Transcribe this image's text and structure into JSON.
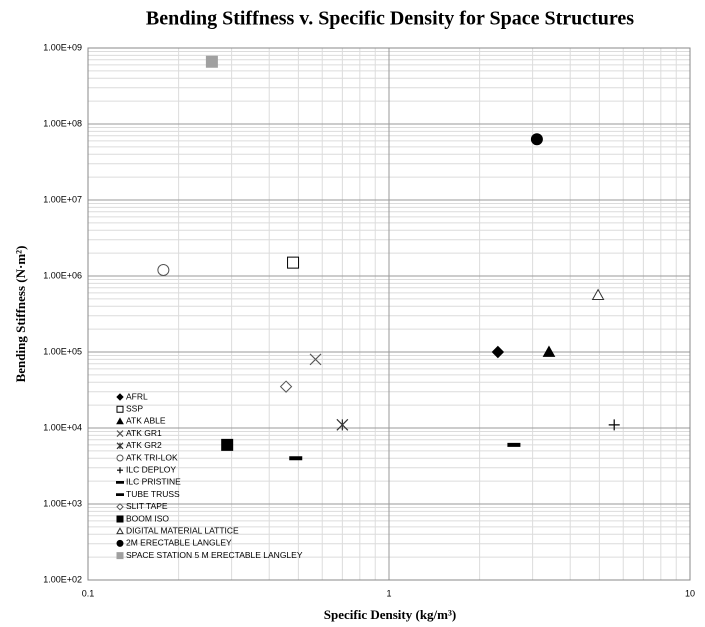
{
  "chart_data": {
    "type": "scatter",
    "title": "Bending Stiffness v. Specific Density for Space Structures",
    "x_label": "Specific Density (kg/m³)",
    "y_label": "Bending Stiffness (N·m²)",
    "log_x": true,
    "log_y": true,
    "grid": true,
    "minor_grid": true,
    "legend": "lower left",
    "xlim": [
      0.1,
      10
    ],
    "xticks": [
      0.1,
      1,
      10
    ],
    "ylim": [
      100,
      1000000000
    ],
    "yticks": [
      {
        "value": 100,
        "label": "1.00E+02"
      },
      {
        "value": 1000,
        "label": "1.00E+03"
      },
      {
        "value": 10000,
        "label": "1.00E+04"
      },
      {
        "value": 100000,
        "label": "1.00E+05"
      },
      {
        "value": 1000000,
        "label": "1.00E+06"
      },
      {
        "value": 10000000,
        "label": "1.00E+07"
      },
      {
        "value": 100000000,
        "label": "1.00E+08"
      },
      {
        "value": 1000000000,
        "label": "1.00E+09"
      }
    ],
    "series": [
      {
        "name": "AFRL",
        "marker": "diamond",
        "filled": true,
        "color": "#000000",
        "x": [
          2.3
        ],
        "values": [
          100000
        ]
      },
      {
        "name": "SSP",
        "marker": "square",
        "filled": false,
        "color": "#000000",
        "x": [
          0.48
        ],
        "values": [
          1500000
        ]
      },
      {
        "name": "ATK ABLE",
        "marker": "triangle",
        "filled": true,
        "color": "#000000",
        "x": [
          3.4
        ],
        "values": [
          100000
        ]
      },
      {
        "name": "ATK GR1",
        "marker": "x",
        "filled": false,
        "color": "#555555",
        "x": [
          0.57
        ],
        "values": [
          80000
        ]
      },
      {
        "name": "ATK GR2",
        "marker": "asterisk",
        "filled": false,
        "color": "#333333",
        "x": [
          0.7
        ],
        "values": [
          11000
        ]
      },
      {
        "name": "ATK TRI-LOK",
        "marker": "circle",
        "filled": false,
        "color": "#555555",
        "x": [
          0.178
        ],
        "values": [
          1200000
        ]
      },
      {
        "name": "ILC DEPLOY",
        "marker": "plus",
        "filled": false,
        "color": "#000000",
        "x": [
          5.6
        ],
        "values": [
          11000
        ]
      },
      {
        "name": "ILC PRISTINE",
        "marker": "dash",
        "filled": true,
        "color": "#000000",
        "x": [
          2.6
        ],
        "values": [
          6000
        ]
      },
      {
        "name": "TUBE TRUSS",
        "marker": "dash",
        "filled": true,
        "color": "#000000",
        "x": [
          0.49
        ],
        "values": [
          4000
        ]
      },
      {
        "name": "SLIT TAPE",
        "marker": "diamond",
        "filled": false,
        "color": "#555555",
        "x": [
          0.455
        ],
        "values": [
          35000
        ]
      },
      {
        "name": "BOOM ISO",
        "marker": "square",
        "filled": true,
        "color": "#000000",
        "x": [
          0.29
        ],
        "values": [
          6000
        ]
      },
      {
        "name": "DIGITAL MATERIAL LATTICE",
        "marker": "triangle",
        "filled": false,
        "color": "#333333",
        "x": [
          4.95
        ],
        "values": [
          560000
        ]
      },
      {
        "name": "2M ERECTABLE LANGLEY",
        "marker": "circle",
        "filled": true,
        "color": "#000000",
        "x": [
          3.1
        ],
        "values": [
          63000000
        ]
      },
      {
        "name": "SPACE STATION 5 M ERECTABLE LANGLEY",
        "marker": "square",
        "filled": true,
        "color": "#a0a0a0",
        "x": [
          0.258
        ],
        "values": [
          660000000
        ]
      }
    ]
  }
}
